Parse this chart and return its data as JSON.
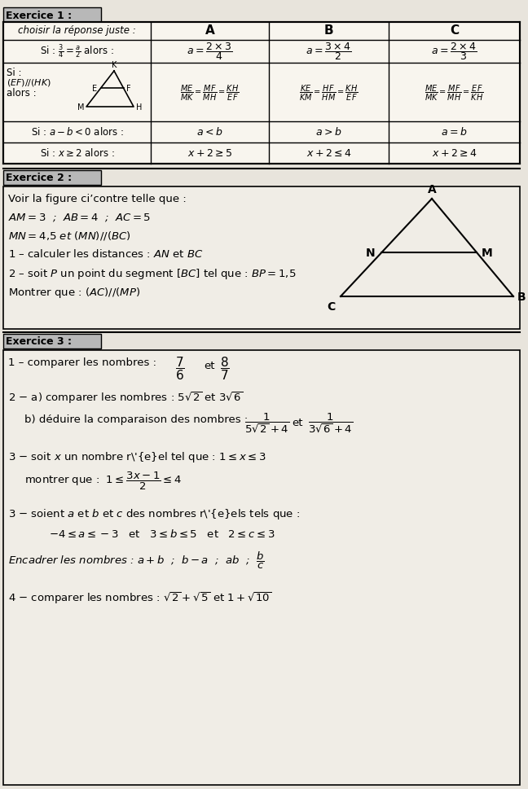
{
  "bg_color": "#e8e4dc",
  "white": "#f0ede6",
  "ex1_title": "Exercice 1 :",
  "ex2_title": "Exercice 2 :",
  "ex3_title": "Exercice 3 :",
  "table_col_labels": [
    "choisir la réponse juste :",
    "A",
    "B",
    "C"
  ],
  "row1_label": "Si : $\\frac{3}{4} = \\frac{a}{2}$ alors :",
  "row1_A": "$a = \\dfrac{2 \\times 3}{4}$",
  "row1_B": "$a = \\dfrac{3 \\times 4}{2}$",
  "row1_C": "$a = \\dfrac{2 \\times 4}{3}$",
  "row3_label": "Si : $a - b < 0$ alors :",
  "row3_A": "$a < b$",
  "row3_B": "$a > b$",
  "row3_C": "$a = b$",
  "row4_label": "Si : $x \\geq 2$ alors :",
  "row4_A": "$x + 2 \\geq 5$",
  "row4_B": "$x + 2 \\leq 4$",
  "row4_C": "$x + 2 \\geq 4$"
}
